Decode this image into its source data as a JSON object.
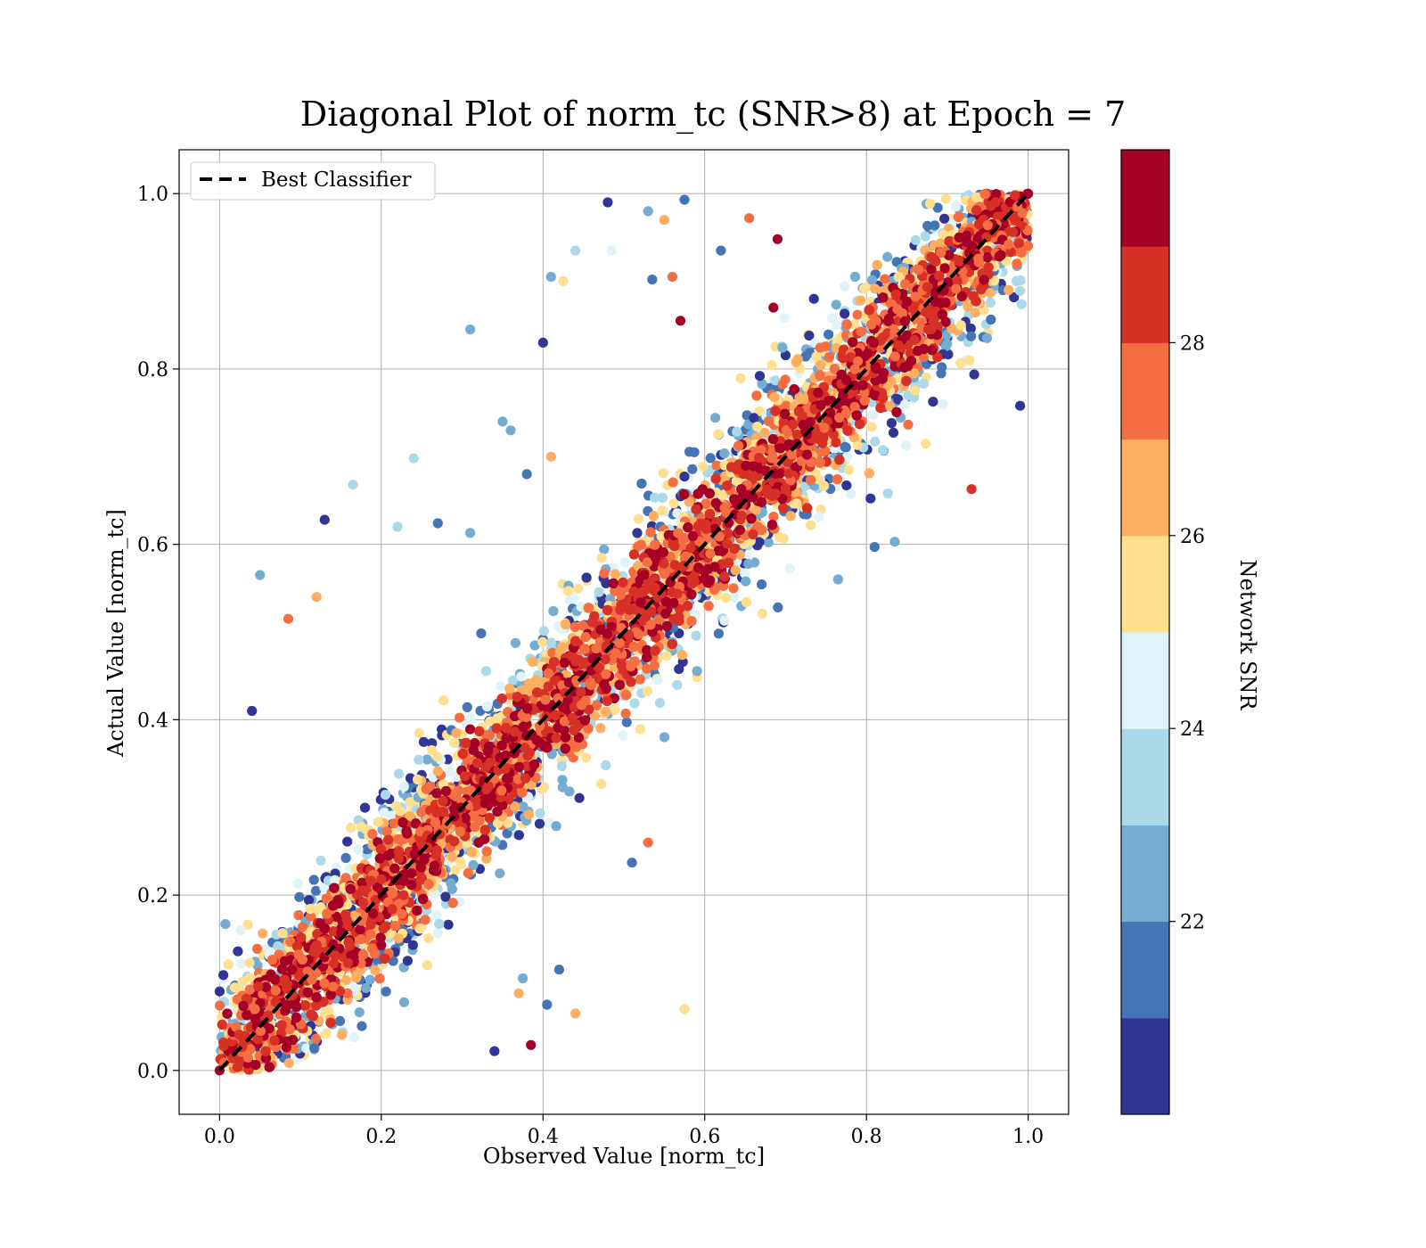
{
  "chart_data": {
    "type": "scatter",
    "title": "Diagonal Plot of norm_tc (SNR>8) at Epoch = 7",
    "xlabel": "Observed Value [norm_tc]",
    "ylabel": "Actual Value [norm_tc]",
    "xlim": [
      -0.05,
      1.05
    ],
    "ylim": [
      -0.05,
      1.05
    ],
    "xticks": [
      "0.0",
      "0.2",
      "0.4",
      "0.6",
      "0.8",
      "1.0"
    ],
    "yticks": [
      "0.0",
      "0.2",
      "0.4",
      "0.6",
      "0.8",
      "1.0"
    ],
    "grid": true,
    "legend": {
      "location": "upper-left",
      "entries": [
        "Best Classifier"
      ]
    },
    "reference_line": {
      "name": "Best Classifier",
      "style": "dashed",
      "color": "#000000",
      "x": [
        0,
        1
      ],
      "y": [
        0,
        1
      ]
    },
    "colorbar": {
      "label": "Network SNR",
      "range": [
        20,
        30
      ],
      "ticks": [
        "22",
        "24",
        "26",
        "28"
      ],
      "tick_values": [
        22,
        24,
        26,
        28
      ],
      "colors": [
        "#313695",
        "#4575b4",
        "#74add1",
        "#abd9e9",
        "#e0f3f8",
        "#fee090",
        "#fdae61",
        "#f46d43",
        "#d73027",
        "#a50026"
      ]
    },
    "series": [
      {
        "values_note": "",
        "points": [
          [
            0.48,
            0.99,
            20.5
          ],
          [
            0.575,
            0.993,
            21
          ],
          [
            0.53,
            0.98,
            22.5
          ],
          [
            0.55,
            0.97,
            26.5
          ],
          [
            0.44,
            0.935,
            23.5
          ],
          [
            0.485,
            0.935,
            24.5
          ],
          [
            0.62,
            0.935,
            21
          ],
          [
            0.69,
            0.948,
            29.5
          ],
          [
            0.655,
            0.972,
            27
          ],
          [
            0.4,
            0.83,
            20.5
          ],
          [
            0.31,
            0.845,
            22.5
          ],
          [
            0.41,
            0.905,
            22.5
          ],
          [
            0.425,
            0.9,
            25.5
          ],
          [
            0.535,
            0.902,
            21.5
          ],
          [
            0.56,
            0.905,
            27
          ],
          [
            0.57,
            0.855,
            29.5
          ],
          [
            0.685,
            0.87,
            29
          ],
          [
            0.735,
            0.88,
            20.5
          ],
          [
            0.765,
            0.56,
            22
          ],
          [
            0.835,
            0.603,
            22.5
          ],
          [
            0.81,
            0.597,
            21.5
          ],
          [
            0.93,
            0.663,
            28
          ],
          [
            0.99,
            0.758,
            20.5
          ],
          [
            0.51,
            0.237,
            21.5
          ],
          [
            0.53,
            0.26,
            27
          ],
          [
            0.55,
            0.38,
            22
          ],
          [
            0.34,
            0.022,
            20.5
          ],
          [
            0.385,
            0.029,
            29
          ],
          [
            0.405,
            0.075,
            21
          ],
          [
            0.44,
            0.065,
            26
          ],
          [
            0.575,
            0.07,
            25.5
          ],
          [
            0.42,
            0.115,
            21.5
          ],
          [
            0.375,
            0.105,
            22.5
          ],
          [
            0.37,
            0.088,
            26
          ],
          [
            0.04,
            0.41,
            20.5
          ],
          [
            0.05,
            0.565,
            22.5
          ],
          [
            0.13,
            0.628,
            20.5
          ],
          [
            0.165,
            0.668,
            23
          ],
          [
            0.24,
            0.698,
            23.5
          ],
          [
            0.31,
            0.613,
            22.5
          ],
          [
            0.27,
            0.624,
            21
          ],
          [
            0.22,
            0.62,
            23
          ],
          [
            0.085,
            0.515,
            27
          ],
          [
            0.12,
            0.54,
            26
          ],
          [
            0.36,
            0.73,
            22.5
          ],
          [
            0.35,
            0.74,
            22.5
          ],
          [
            0.38,
            0.68,
            21
          ],
          [
            0.41,
            0.7,
            26
          ],
          [
            0.0,
            0.0,
            29.5
          ],
          [
            1.0,
            1.0,
            29.5
          ]
        ]
      }
    ]
  }
}
